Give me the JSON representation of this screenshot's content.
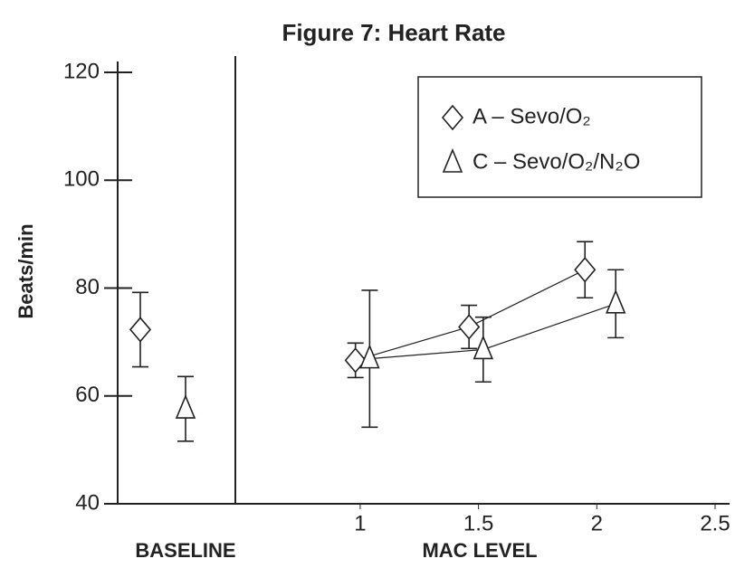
{
  "chart_data": {
    "type": "scatter",
    "title": "Figure 7: Heart Rate",
    "y_label": "Beats/min",
    "baseline_label": "BASELINE",
    "x_label": "MAC LEVEL",
    "ylim": [
      40,
      122
    ],
    "yticks": [
      40,
      60,
      80,
      100,
      120
    ],
    "xlim": [
      0.48,
      2.5
    ],
    "xticks": [
      1,
      1.5,
      2,
      2.5
    ],
    "series": [
      {
        "name": "A – Sevo/O₂",
        "marker": "diamond",
        "color": "#222222",
        "baseline": 72.3,
        "baseline_error": 6.9,
        "x": [
          0.98,
          1.46,
          1.95
        ],
        "values": [
          66.6,
          72.8,
          83.4
        ],
        "errors": [
          3.2,
          4,
          5.2
        ]
      },
      {
        "name": "C – Sevo/O₂/N₂O",
        "marker": "triangle",
        "color": "#222222",
        "baseline": 57.6,
        "baseline_error": 6,
        "x": [
          1.04,
          1.52,
          2.08
        ],
        "values": [
          66.9,
          68.6,
          77.1
        ],
        "errors": [
          12.7,
          6,
          6.3
        ]
      }
    ]
  }
}
